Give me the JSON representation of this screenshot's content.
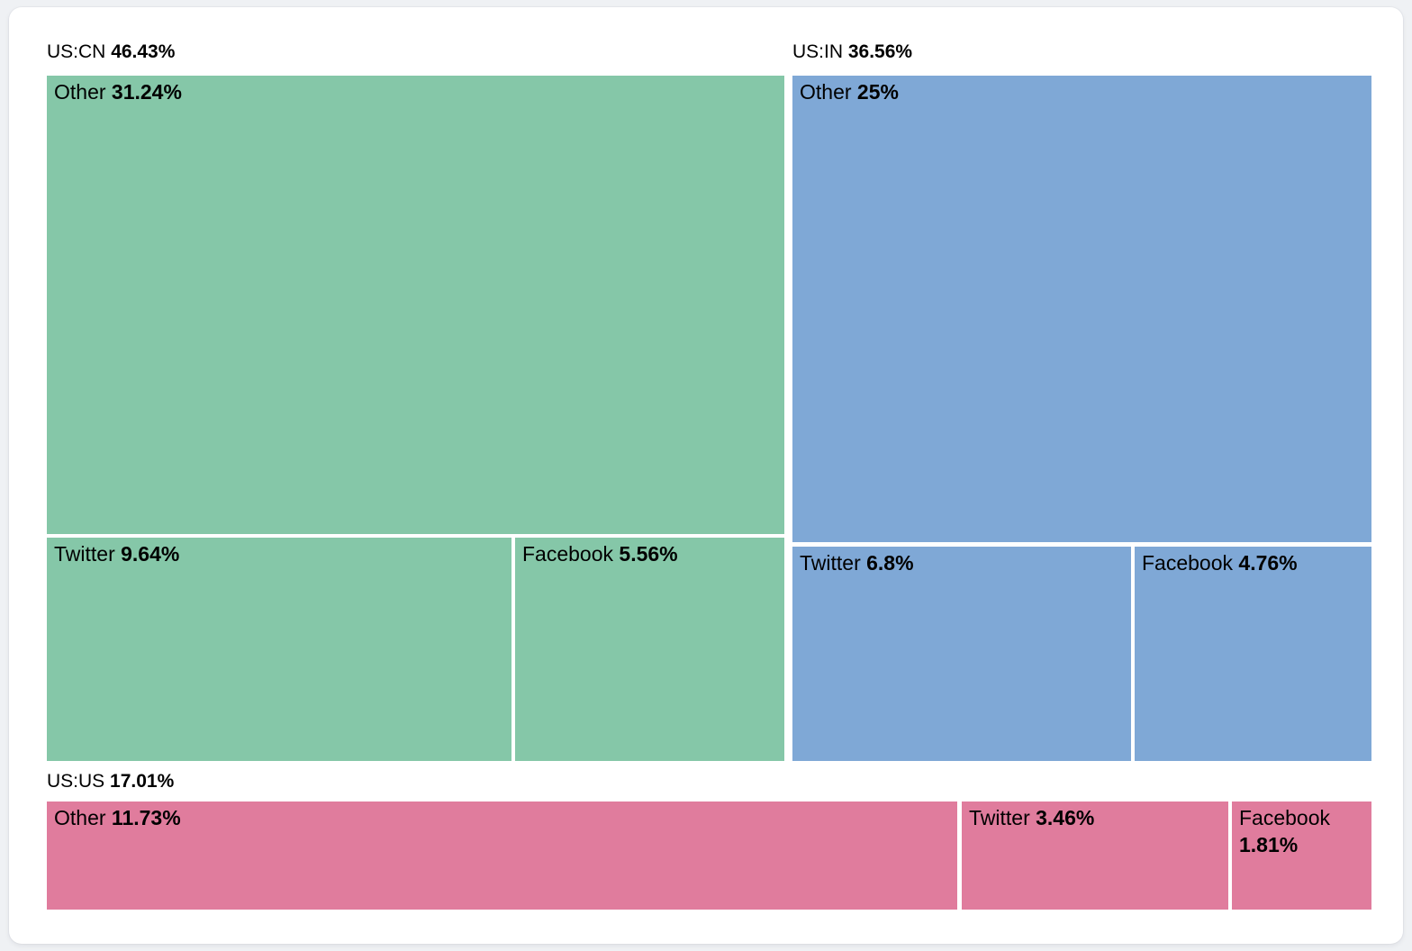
{
  "chart_data": {
    "type": "treemap",
    "legend": "none",
    "text_color": "#000000",
    "card_background": "#ffffff",
    "page_background": "#eff1f4",
    "groups": [
      {
        "label": "US:CN",
        "percent": 46.43,
        "percent_label": "46.43%",
        "color": "#85c7a8",
        "children": [
          {
            "name": "Other",
            "percent": 31.24,
            "percent_label": "31.24%"
          },
          {
            "name": "Twitter",
            "percent": 9.64,
            "percent_label": "9.64%"
          },
          {
            "name": "Facebook",
            "percent": 5.56,
            "percent_label": "5.56%"
          }
        ]
      },
      {
        "label": "US:IN",
        "percent": 36.56,
        "percent_label": "36.56%",
        "color": "#7fa8d6",
        "children": [
          {
            "name": "Other",
            "percent": 25,
            "percent_label": "25%"
          },
          {
            "name": "Twitter",
            "percent": 6.8,
            "percent_label": "6.8%"
          },
          {
            "name": "Facebook",
            "percent": 4.76,
            "percent_label": "4.76%"
          }
        ]
      },
      {
        "label": "US:US",
        "percent": 17.01,
        "percent_label": "17.01%",
        "color": "#e07c9d",
        "children": [
          {
            "name": "Other",
            "percent": 11.73,
            "percent_label": "11.73%"
          },
          {
            "name": "Twitter",
            "percent": 3.46,
            "percent_label": "3.46%"
          },
          {
            "name": "Facebook",
            "percent": 1.81,
            "percent_label": "1.81%"
          }
        ]
      }
    ]
  }
}
